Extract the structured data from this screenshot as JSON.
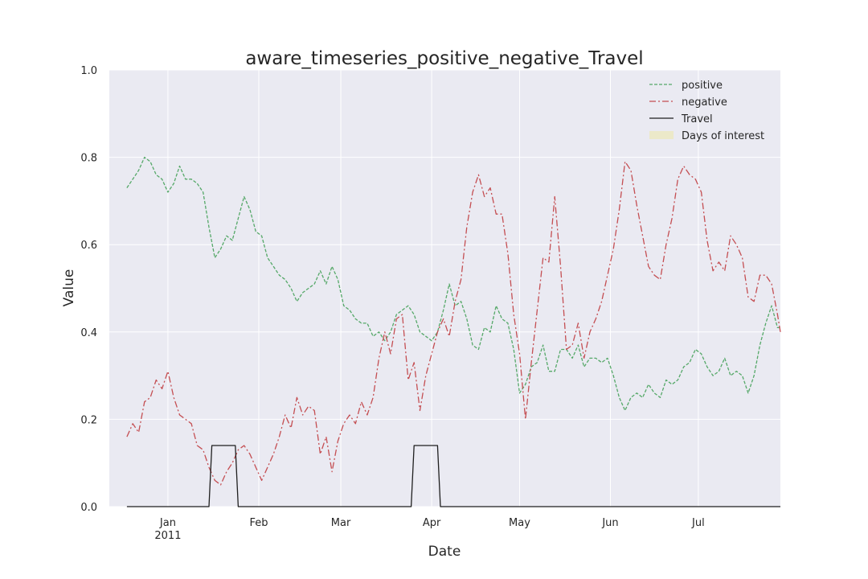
{
  "chart_data": {
    "type": "line",
    "title": "aware_timeseries_positive_negative_Travel",
    "xlabel": "Date",
    "ylabel": "Value",
    "ylim": [
      0.0,
      1.0
    ],
    "xlim": [
      "2010-12-12",
      "2011-07-29"
    ],
    "grid": true,
    "legend_position": "top-right",
    "x_ticks": [
      {
        "date": "2011-01-01",
        "label": "Jan",
        "sublabel": "2011"
      },
      {
        "date": "2011-02-01",
        "label": "Feb",
        "sublabel": ""
      },
      {
        "date": "2011-03-01",
        "label": "Mar",
        "sublabel": ""
      },
      {
        "date": "2011-04-01",
        "label": "Apr",
        "sublabel": ""
      },
      {
        "date": "2011-05-01",
        "label": "May",
        "sublabel": ""
      },
      {
        "date": "2011-06-01",
        "label": "Jun",
        "sublabel": ""
      },
      {
        "date": "2011-07-01",
        "label": "Jul",
        "sublabel": ""
      }
    ],
    "y_ticks": [
      "0.0",
      "0.2",
      "0.4",
      "0.6",
      "0.8",
      "1.0"
    ],
    "series": [
      {
        "name": "positive",
        "color": "#55a868",
        "style": "dashed",
        "points": [
          [
            "2010-12-18",
            0.73
          ],
          [
            "2010-12-20",
            0.75
          ],
          [
            "2010-12-22",
            0.77
          ],
          [
            "2010-12-24",
            0.8
          ],
          [
            "2010-12-26",
            0.79
          ],
          [
            "2010-12-28",
            0.76
          ],
          [
            "2010-12-30",
            0.75
          ],
          [
            "2011-01-01",
            0.72
          ],
          [
            "2011-01-03",
            0.74
          ],
          [
            "2011-01-05",
            0.78
          ],
          [
            "2011-01-07",
            0.75
          ],
          [
            "2011-01-09",
            0.75
          ],
          [
            "2011-01-11",
            0.74
          ],
          [
            "2011-01-13",
            0.72
          ],
          [
            "2011-01-15",
            0.64
          ],
          [
            "2011-01-17",
            0.57
          ],
          [
            "2011-01-19",
            0.59
          ],
          [
            "2011-01-21",
            0.62
          ],
          [
            "2011-01-23",
            0.61
          ],
          [
            "2011-01-25",
            0.66
          ],
          [
            "2011-01-27",
            0.71
          ],
          [
            "2011-01-29",
            0.68
          ],
          [
            "2011-01-31",
            0.63
          ],
          [
            "2011-02-02",
            0.62
          ],
          [
            "2011-02-04",
            0.57
          ],
          [
            "2011-02-06",
            0.55
          ],
          [
            "2011-02-08",
            0.53
          ],
          [
            "2011-02-10",
            0.52
          ],
          [
            "2011-02-12",
            0.5
          ],
          [
            "2011-02-14",
            0.47
          ],
          [
            "2011-02-16",
            0.49
          ],
          [
            "2011-02-18",
            0.5
          ],
          [
            "2011-02-20",
            0.51
          ],
          [
            "2011-02-22",
            0.54
          ],
          [
            "2011-02-24",
            0.51
          ],
          [
            "2011-02-26",
            0.55
          ],
          [
            "2011-02-28",
            0.52
          ],
          [
            "2011-03-02",
            0.46
          ],
          [
            "2011-03-04",
            0.45
          ],
          [
            "2011-03-06",
            0.43
          ],
          [
            "2011-03-08",
            0.42
          ],
          [
            "2011-03-10",
            0.42
          ],
          [
            "2011-03-12",
            0.39
          ],
          [
            "2011-03-14",
            0.4
          ],
          [
            "2011-03-16",
            0.38
          ],
          [
            "2011-03-18",
            0.4
          ],
          [
            "2011-03-20",
            0.44
          ],
          [
            "2011-03-22",
            0.45
          ],
          [
            "2011-03-24",
            0.46
          ],
          [
            "2011-03-26",
            0.44
          ],
          [
            "2011-03-28",
            0.4
          ],
          [
            "2011-03-30",
            0.39
          ],
          [
            "2011-04-01",
            0.38
          ],
          [
            "2011-04-03",
            0.4
          ],
          [
            "2011-04-05",
            0.45
          ],
          [
            "2011-04-07",
            0.51
          ],
          [
            "2011-04-09",
            0.46
          ],
          [
            "2011-04-11",
            0.47
          ],
          [
            "2011-04-13",
            0.43
          ],
          [
            "2011-04-15",
            0.37
          ],
          [
            "2011-04-17",
            0.36
          ],
          [
            "2011-04-19",
            0.41
          ],
          [
            "2011-04-21",
            0.4
          ],
          [
            "2011-04-23",
            0.46
          ],
          [
            "2011-04-25",
            0.43
          ],
          [
            "2011-04-27",
            0.42
          ],
          [
            "2011-04-29",
            0.36
          ],
          [
            "2011-05-01",
            0.26
          ],
          [
            "2011-05-03",
            0.28
          ],
          [
            "2011-05-05",
            0.32
          ],
          [
            "2011-05-07",
            0.33
          ],
          [
            "2011-05-09",
            0.37
          ],
          [
            "2011-05-11",
            0.31
          ],
          [
            "2011-05-13",
            0.31
          ],
          [
            "2011-05-15",
            0.36
          ],
          [
            "2011-05-17",
            0.36
          ],
          [
            "2011-05-19",
            0.34
          ],
          [
            "2011-05-21",
            0.37
          ],
          [
            "2011-05-23",
            0.32
          ],
          [
            "2011-05-25",
            0.34
          ],
          [
            "2011-05-27",
            0.34
          ],
          [
            "2011-05-29",
            0.33
          ],
          [
            "2011-05-31",
            0.34
          ],
          [
            "2011-06-02",
            0.3
          ],
          [
            "2011-06-04",
            0.25
          ],
          [
            "2011-06-06",
            0.22
          ],
          [
            "2011-06-08",
            0.25
          ],
          [
            "2011-06-10",
            0.26
          ],
          [
            "2011-06-12",
            0.25
          ],
          [
            "2011-06-14",
            0.28
          ],
          [
            "2011-06-16",
            0.26
          ],
          [
            "2011-06-18",
            0.25
          ],
          [
            "2011-06-20",
            0.29
          ],
          [
            "2011-06-22",
            0.28
          ],
          [
            "2011-06-24",
            0.29
          ],
          [
            "2011-06-26",
            0.32
          ],
          [
            "2011-06-28",
            0.33
          ],
          [
            "2011-06-30",
            0.36
          ],
          [
            "2011-07-02",
            0.35
          ],
          [
            "2011-07-04",
            0.32
          ],
          [
            "2011-07-06",
            0.3
          ],
          [
            "2011-07-08",
            0.31
          ],
          [
            "2011-07-10",
            0.34
          ],
          [
            "2011-07-12",
            0.3
          ],
          [
            "2011-07-14",
            0.31
          ],
          [
            "2011-07-16",
            0.3
          ],
          [
            "2011-07-18",
            0.26
          ],
          [
            "2011-07-20",
            0.3
          ],
          [
            "2011-07-22",
            0.37
          ],
          [
            "2011-07-24",
            0.42
          ],
          [
            "2011-07-26",
            0.46
          ],
          [
            "2011-07-28",
            0.41
          ],
          [
            "2011-07-29",
            0.41
          ]
        ]
      },
      {
        "name": "negative",
        "color": "#c44e52",
        "style": "dashdot",
        "points": [
          [
            "2010-12-18",
            0.16
          ],
          [
            "2010-12-20",
            0.19
          ],
          [
            "2010-12-22",
            0.17
          ],
          [
            "2010-12-24",
            0.24
          ],
          [
            "2010-12-26",
            0.25
          ],
          [
            "2010-12-28",
            0.29
          ],
          [
            "2010-12-30",
            0.27
          ],
          [
            "2011-01-01",
            0.31
          ],
          [
            "2011-01-03",
            0.25
          ],
          [
            "2011-01-05",
            0.21
          ],
          [
            "2011-01-07",
            0.2
          ],
          [
            "2011-01-09",
            0.19
          ],
          [
            "2011-01-11",
            0.14
          ],
          [
            "2011-01-13",
            0.13
          ],
          [
            "2011-01-15",
            0.09
          ],
          [
            "2011-01-17",
            0.06
          ],
          [
            "2011-01-19",
            0.05
          ],
          [
            "2011-01-21",
            0.08
          ],
          [
            "2011-01-23",
            0.1
          ],
          [
            "2011-01-25",
            0.13
          ],
          [
            "2011-01-27",
            0.14
          ],
          [
            "2011-01-29",
            0.12
          ],
          [
            "2011-01-31",
            0.09
          ],
          [
            "2011-02-02",
            0.06
          ],
          [
            "2011-02-04",
            0.09
          ],
          [
            "2011-02-06",
            0.12
          ],
          [
            "2011-02-08",
            0.16
          ],
          [
            "2011-02-10",
            0.21
          ],
          [
            "2011-02-12",
            0.18
          ],
          [
            "2011-02-14",
            0.25
          ],
          [
            "2011-02-16",
            0.21
          ],
          [
            "2011-02-18",
            0.23
          ],
          [
            "2011-02-20",
            0.22
          ],
          [
            "2011-02-22",
            0.12
          ],
          [
            "2011-02-24",
            0.16
          ],
          [
            "2011-02-26",
            0.08
          ],
          [
            "2011-02-28",
            0.15
          ],
          [
            "2011-03-02",
            0.19
          ],
          [
            "2011-03-04",
            0.21
          ],
          [
            "2011-03-06",
            0.19
          ],
          [
            "2011-03-08",
            0.24
          ],
          [
            "2011-03-10",
            0.21
          ],
          [
            "2011-03-12",
            0.25
          ],
          [
            "2011-03-14",
            0.34
          ],
          [
            "2011-03-16",
            0.4
          ],
          [
            "2011-03-18",
            0.35
          ],
          [
            "2011-03-20",
            0.43
          ],
          [
            "2011-03-22",
            0.44
          ],
          [
            "2011-03-24",
            0.29
          ],
          [
            "2011-03-26",
            0.33
          ],
          [
            "2011-03-28",
            0.22
          ],
          [
            "2011-03-30",
            0.3
          ],
          [
            "2011-04-01",
            0.35
          ],
          [
            "2011-04-03",
            0.4
          ],
          [
            "2011-04-05",
            0.43
          ],
          [
            "2011-04-07",
            0.39
          ],
          [
            "2011-04-09",
            0.47
          ],
          [
            "2011-04-11",
            0.52
          ],
          [
            "2011-04-13",
            0.64
          ],
          [
            "2011-04-15",
            0.72
          ],
          [
            "2011-04-17",
            0.76
          ],
          [
            "2011-04-19",
            0.71
          ],
          [
            "2011-04-21",
            0.73
          ],
          [
            "2011-04-23",
            0.67
          ],
          [
            "2011-04-25",
            0.67
          ],
          [
            "2011-04-27",
            0.58
          ],
          [
            "2011-04-29",
            0.44
          ],
          [
            "2011-05-01",
            0.35
          ],
          [
            "2011-05-03",
            0.2
          ],
          [
            "2011-05-05",
            0.33
          ],
          [
            "2011-05-07",
            0.45
          ],
          [
            "2011-05-09",
            0.57
          ],
          [
            "2011-05-11",
            0.56
          ],
          [
            "2011-05-13",
            0.71
          ],
          [
            "2011-05-15",
            0.55
          ],
          [
            "2011-05-17",
            0.36
          ],
          [
            "2011-05-19",
            0.37
          ],
          [
            "2011-05-21",
            0.42
          ],
          [
            "2011-05-23",
            0.34
          ],
          [
            "2011-05-25",
            0.4
          ],
          [
            "2011-05-27",
            0.43
          ],
          [
            "2011-05-29",
            0.47
          ],
          [
            "2011-05-31",
            0.53
          ],
          [
            "2011-06-02",
            0.59
          ],
          [
            "2011-06-04",
            0.68
          ],
          [
            "2011-06-06",
            0.79
          ],
          [
            "2011-06-08",
            0.77
          ],
          [
            "2011-06-10",
            0.69
          ],
          [
            "2011-06-12",
            0.62
          ],
          [
            "2011-06-14",
            0.55
          ],
          [
            "2011-06-16",
            0.53
          ],
          [
            "2011-06-18",
            0.52
          ],
          [
            "2011-06-20",
            0.6
          ],
          [
            "2011-06-22",
            0.66
          ],
          [
            "2011-06-24",
            0.75
          ],
          [
            "2011-06-26",
            0.78
          ],
          [
            "2011-06-28",
            0.76
          ],
          [
            "2011-06-30",
            0.75
          ],
          [
            "2011-07-02",
            0.72
          ],
          [
            "2011-07-04",
            0.61
          ],
          [
            "2011-07-06",
            0.54
          ],
          [
            "2011-07-08",
            0.56
          ],
          [
            "2011-07-10",
            0.54
          ],
          [
            "2011-07-12",
            0.62
          ],
          [
            "2011-07-14",
            0.6
          ],
          [
            "2011-07-16",
            0.57
          ],
          [
            "2011-07-18",
            0.48
          ],
          [
            "2011-07-20",
            0.47
          ],
          [
            "2011-07-22",
            0.53
          ],
          [
            "2011-07-24",
            0.53
          ],
          [
            "2011-07-26",
            0.51
          ],
          [
            "2011-07-28",
            0.44
          ],
          [
            "2011-07-29",
            0.4
          ]
        ]
      },
      {
        "name": "Travel",
        "color": "#1f1f1f",
        "style": "solid",
        "points": [
          [
            "2010-12-18",
            0.0
          ],
          [
            "2011-01-15",
            0.0
          ],
          [
            "2011-01-16",
            0.14
          ],
          [
            "2011-01-24",
            0.14
          ],
          [
            "2011-01-25",
            0.0
          ],
          [
            "2011-03-25",
            0.0
          ],
          [
            "2011-03-26",
            0.14
          ],
          [
            "2011-04-03",
            0.14
          ],
          [
            "2011-04-04",
            0.0
          ],
          [
            "2011-07-29",
            0.0
          ]
        ]
      }
    ],
    "legend": [
      {
        "label": "positive",
        "color": "#55a868",
        "style": "dashed"
      },
      {
        "label": "negative",
        "color": "#c44e52",
        "style": "dashdot"
      },
      {
        "label": "Travel",
        "color": "#1f1f1f",
        "style": "solid"
      },
      {
        "label": "Days of interest",
        "color": "#ece9c4",
        "style": "patch"
      }
    ]
  }
}
